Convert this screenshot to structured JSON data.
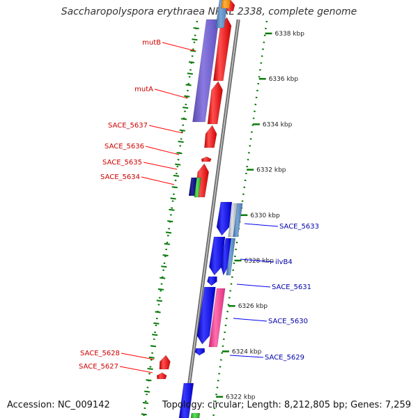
{
  "title": "Saccharopolyspora erythraea NRRL 2338, complete genome",
  "footer": {
    "accession": "Accession: NC_009142",
    "summary": "Topology: circular; Length: 8,212,805 bp; Genes: 7,259"
  },
  "colors": {
    "forward": "#ff0000",
    "reverse": "#0000ee",
    "axis": "#8a8a8a",
    "ruler": "#0a7a0a"
  },
  "ticks": [
    {
      "label": "6338 kbp",
      "kbp": 6338
    },
    {
      "label": "6336 kbp",
      "kbp": 6336
    },
    {
      "label": "6334 kbp",
      "kbp": 6334
    },
    {
      "label": "6332 kbp",
      "kbp": 6332
    },
    {
      "label": "6330 kbp",
      "kbp": 6330
    },
    {
      "label": "6328 kbp",
      "kbp": 6328
    },
    {
      "label": "6326 kbp",
      "kbp": 6326
    },
    {
      "label": "6324 kbp",
      "kbp": 6324
    },
    {
      "label": "6322 kbp",
      "kbp": 6322
    }
  ],
  "forward_labels": [
    "mutB",
    "mutA",
    "SACE_5637",
    "SACE_5636",
    "SACE_5635",
    "SACE_5634",
    "SACE_5628",
    "SACE_5627"
  ],
  "reverse_labels": [
    "SACE_5633",
    "ilvB4",
    "SACE_5631",
    "SACE_5630",
    "SACE_5629"
  ]
}
